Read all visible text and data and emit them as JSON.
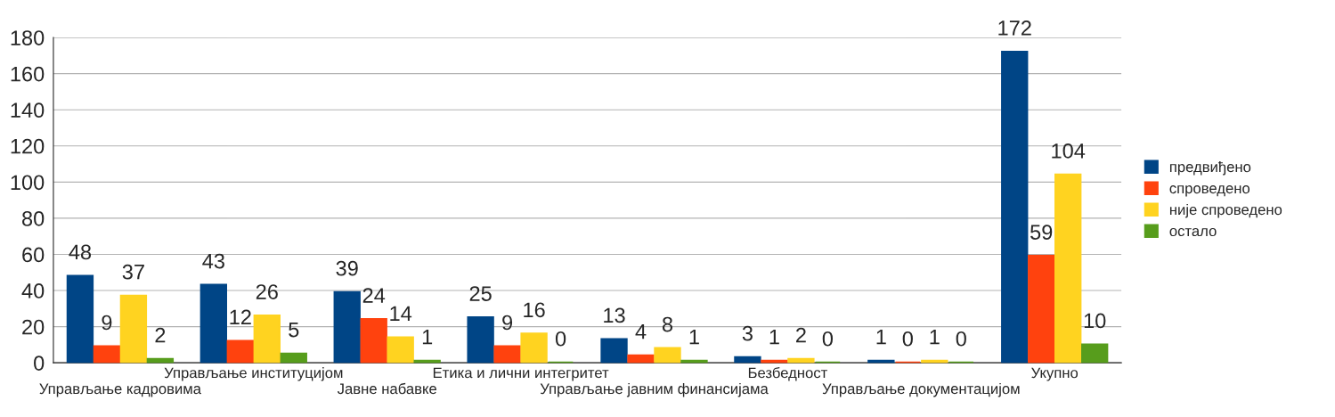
{
  "chart_data": {
    "type": "bar",
    "categories": [
      "Управљање кадровима",
      "Управљање институцијом",
      "Јавне набавке",
      "Етика и лични интегритет",
      "Управљање јавним финансијама",
      "Безбедност",
      "Управљање документацијом",
      "Укупно"
    ],
    "series": [
      {
        "name": "предвиђено",
        "color": "#004586",
        "values": [
          48,
          43,
          39,
          25,
          13,
          3,
          1,
          172
        ]
      },
      {
        "name": "спроведено",
        "color": "#ff420e",
        "values": [
          9,
          12,
          24,
          9,
          4,
          1,
          0,
          59
        ]
      },
      {
        "name": "није спроведено",
        "color": "#ffd320",
        "values": [
          37,
          26,
          14,
          16,
          8,
          2,
          1,
          104
        ]
      },
      {
        "name": "остало",
        "color": "#579d1c",
        "values": [
          2,
          5,
          1,
          0,
          1,
          0,
          0,
          10
        ]
      }
    ],
    "ylim": [
      0,
      180
    ],
    "yticks": [
      0,
      20,
      40,
      60,
      80,
      100,
      120,
      140,
      160,
      180
    ],
    "grid": "y",
    "legend": "right",
    "data_labels": true
  }
}
